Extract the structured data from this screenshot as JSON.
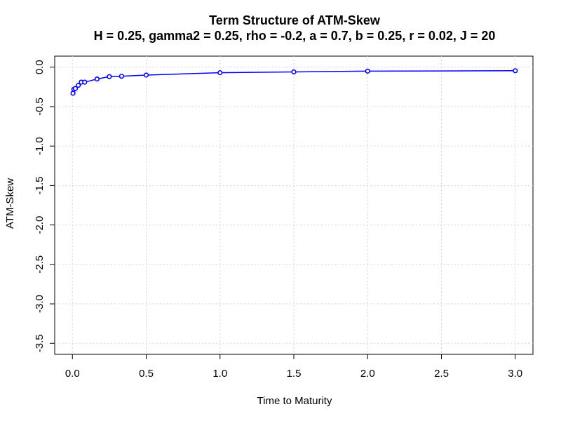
{
  "chart_data": {
    "type": "line",
    "title": "Term Structure of ATM-Skew",
    "subtitle": "H = 0.25, gamma2 = 0.25, rho = -0.2, a = 0.7, b = 0.25, r = 0.02, J = 20",
    "x_label": "Time to Maturity",
    "y_label": "ATM-Skew",
    "x": [
      0.004,
      0.01,
      0.02,
      0.04,
      0.06,
      0.083,
      0.167,
      0.25,
      0.333,
      0.5,
      1,
      1.5,
      2,
      3
    ],
    "series": [
      {
        "name": "ATM-Skew",
        "color": "#0000ff",
        "values": [
          -0.33,
          -0.28,
          -0.27,
          -0.23,
          -0.19,
          -0.19,
          -0.15,
          -0.12,
          -0.115,
          -0.1,
          -0.07,
          -0.06,
          -0.05,
          -0.045
        ]
      }
    ],
    "xlim": [
      -0.12,
      3.12
    ],
    "ylim": [
      -3.64,
      0.14
    ],
    "xticks": [
      {
        "value": 0,
        "label": "0.0"
      },
      0.5,
      {
        "value": 1,
        "label": "1.0"
      },
      1.5,
      {
        "value": 2,
        "label": "2.0"
      },
      2.5,
      {
        "value": 3,
        "label": "3.0"
      }
    ],
    "yticks": [
      {
        "value": 0,
        "label": "0.0"
      },
      -0.5,
      {
        "value": -1,
        "label": "-1.0"
      },
      -1.5,
      {
        "value": -2,
        "label": "-2.0"
      },
      -2.5,
      {
        "value": -3,
        "label": "-3.0"
      },
      -3.5
    ],
    "grid": true
  }
}
